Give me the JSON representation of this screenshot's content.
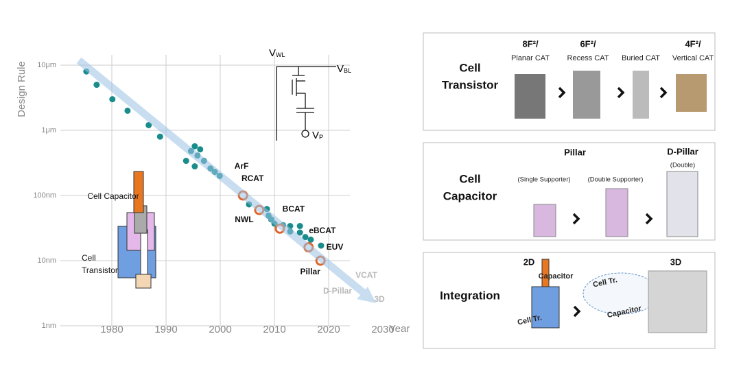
{
  "chart_data": {
    "type": "scatter",
    "y_label": "Design Rule",
    "x_label": "Year",
    "log_y": true,
    "grid": true,
    "xlim": [
      1970,
      2030
    ],
    "ylim": [
      1,
      10000
    ],
    "xticks": [
      1980,
      1990,
      2000,
      2010,
      2020,
      2030
    ],
    "yticks": [
      {
        "value": 10000,
        "label": "10μm"
      },
      {
        "value": 1000,
        "label": "1μm"
      },
      {
        "value": 100,
        "label": "100nm"
      },
      {
        "value": 10,
        "label": "10nm"
      },
      {
        "value": 1,
        "label": "1nm"
      }
    ],
    "series": [
      {
        "color": "#1a8c8c",
        "x": [
          1975.3,
          1977.2,
          1980.1,
          1982.9,
          1986.8,
          1988.9,
          1993.7,
          1994.6,
          1995.3,
          1995.8,
          1996.3,
          1995.3,
          1997.0,
          1998.2,
          1999.0,
          1999.9,
          2005.3,
          2008.6,
          2008.9,
          2009.4,
          2010.0,
          2011.6,
          2012.9,
          2012.9,
          2014.7,
          2014.7,
          2015.7,
          2016.7,
          2018.6
        ],
        "values": [
          8000,
          5000,
          3000,
          2000,
          1200,
          800,
          340,
          480,
          570,
          410,
          510,
          280,
          340,
          260,
          230,
          200,
          73,
          62,
          49,
          43,
          37,
          35,
          34,
          28,
          34,
          27,
          23,
          21,
          17
        ]
      },
      {
        "color": "#e0642a",
        "x": [
          2004.2,
          2007.2,
          2011.0,
          2016.3,
          2018.5
        ],
        "values": [
          100,
          60,
          31,
          16,
          10
        ],
        "point_labels": [
          "RCAT",
          "NWL",
          "BCAT",
          "eBCAT",
          "Pillar"
        ]
      }
    ],
    "annotations": [
      "ArF",
      "EUV",
      "VCAT",
      "D-Pillar",
      "3D",
      "Cell Capacitor",
      "Cell",
      "Transistor"
    ],
    "circuit_labels": [
      {
        "main": "V",
        "sub": "WL"
      },
      {
        "main": "V",
        "sub": "BL"
      },
      {
        "main": "V",
        "sub": "P"
      }
    ]
  },
  "panels": [
    {
      "title": [
        "Cell",
        "Transistor"
      ],
      "labels": [
        "8F²/",
        "Planar CAT",
        "6F²/",
        "Recess CAT",
        "Buried CAT",
        "4F²/",
        "Vertical CAT"
      ]
    },
    {
      "title": [
        "Cell",
        "Capacitor"
      ],
      "labels": [
        "Pillar",
        "(Single Supporter)",
        "(Double Supporter)",
        "D-Pillar",
        "(Double)"
      ]
    },
    {
      "title": [
        "Integration"
      ],
      "labels": [
        "2D",
        "Capacitor",
        "Cell Tr.",
        "3D",
        "Cell Tr.",
        "Capacitor"
      ]
    }
  ]
}
